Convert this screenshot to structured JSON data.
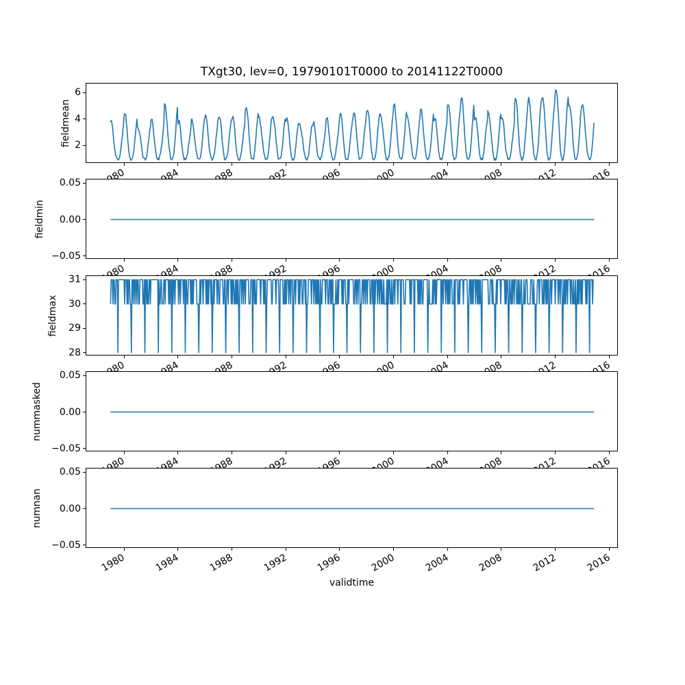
{
  "chart_data": {
    "type": "line",
    "title": "TXgt30, lev=0, 19790101T0000 to 20141122T0000",
    "line_color": "#1f77b4",
    "line_width": 1.6,
    "grid": false,
    "legend": "none",
    "x_axis": {
      "label": "validtime",
      "xlim": [
        1977.2,
        2016.7
      ],
      "ticks": [
        1980,
        1984,
        1988,
        1992,
        1996,
        2000,
        2004,
        2008,
        2012,
        2016
      ],
      "tick_rotation_deg": 30,
      "data_start": 1979.0,
      "data_end": 2014.89
    },
    "panels": [
      {
        "ylabel": "fieldmean",
        "kind": "seasonal",
        "ylim": [
          0.625,
          6.675
        ],
        "ytick_values": [
          2,
          4,
          6
        ],
        "ytick_labels": [
          "2",
          "4",
          "6"
        ],
        "annual_min": 0.95,
        "annual_peaks": [
          3.6,
          4.3,
          3.5,
          3.8,
          4.9,
          3.7,
          3.9,
          4.1,
          4.3,
          4.1,
          5.0,
          4.1,
          4.3,
          4.2,
          3.7,
          3.6,
          3.9,
          4.4,
          4.5,
          4.8,
          4.4,
          4.9,
          4.2,
          4.5,
          4.1,
          5.3,
          5.4,
          4.3,
          4.5,
          4.0,
          5.5,
          5.6,
          5.8,
          6.4,
          5.3,
          4.9
        ],
        "peak_years_start": 1979,
        "trough_phase": 0.54,
        "points_per_year": 24,
        "harmonic_amp": 0.25,
        "noise_amp": 0.2,
        "value_cap": 6.6,
        "seed": 42
      },
      {
        "ylabel": "fieldmin",
        "kind": "constant",
        "value": 0,
        "ylim": [
          -0.055,
          0.055
        ],
        "ytick_values": [
          0.05,
          0.0,
          -0.05
        ],
        "ytick_labels": [
          "0.05",
          "0.00",
          "−0.05"
        ]
      },
      {
        "ylabel": "fieldmax",
        "kind": "sawmax",
        "ylim": [
          27.85,
          31.15
        ],
        "ytick_values": [
          28,
          29,
          30,
          31
        ],
        "ytick_labels": [
          "28",
          "29",
          "30",
          "31"
        ],
        "top_value": 31,
        "base_value": 30,
        "dip_value": 28,
        "dip_phase": 0.54,
        "base_probability": 0.32,
        "points_per_year": 22,
        "seed": 7
      },
      {
        "ylabel": "nummasked",
        "kind": "constant",
        "value": 0,
        "ylim": [
          -0.055,
          0.055
        ],
        "ytick_values": [
          0.05,
          0.0,
          -0.05
        ],
        "ytick_labels": [
          "0.05",
          "0.00",
          "−0.05"
        ]
      },
      {
        "ylabel": "numnan",
        "kind": "constant",
        "value": 0,
        "ylim": [
          -0.055,
          0.055
        ],
        "ytick_values": [
          0.05,
          0.0,
          -0.05
        ],
        "ytick_labels": [
          "0.05",
          "0.00",
          "−0.05"
        ]
      }
    ]
  }
}
